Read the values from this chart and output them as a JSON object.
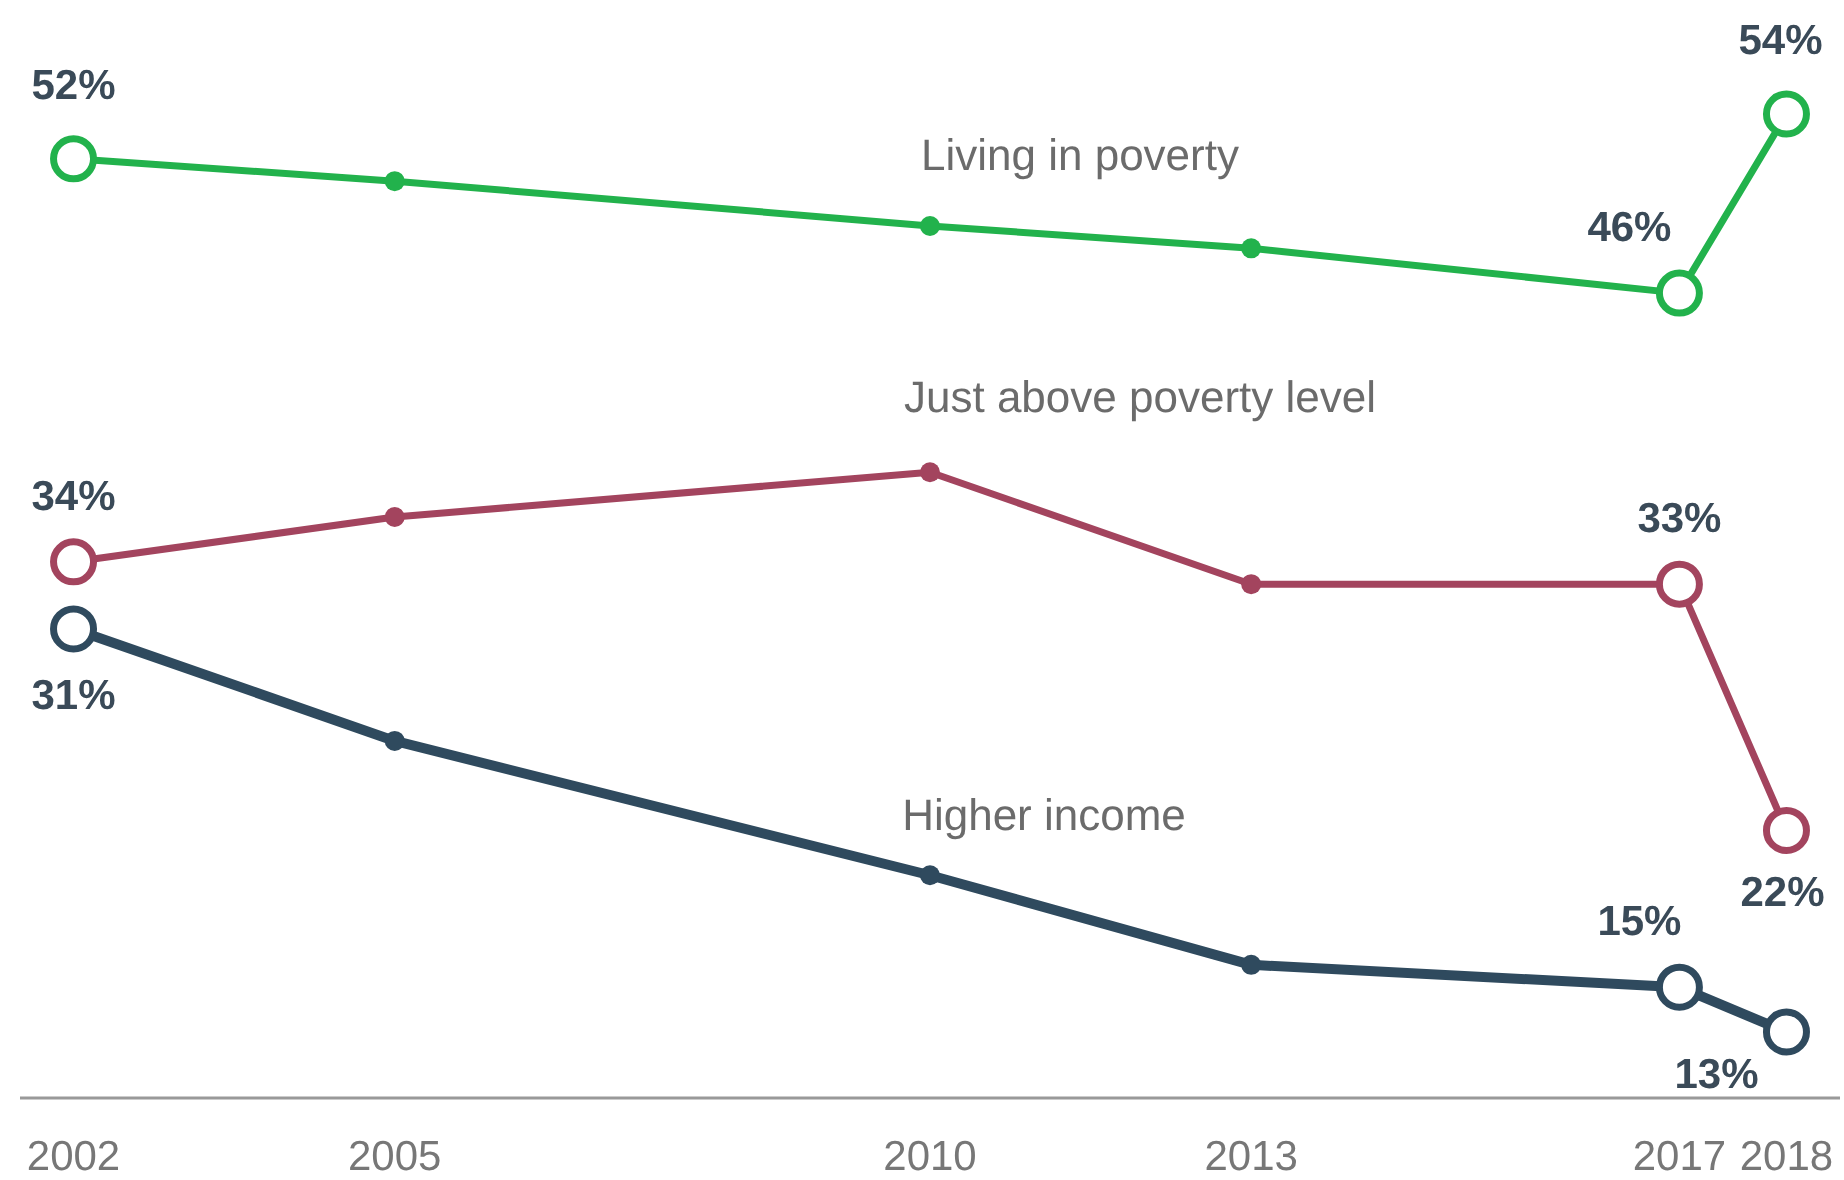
{
  "chart_data": {
    "type": "line",
    "x": [
      2002,
      2005,
      2010,
      2013,
      2017,
      2018
    ],
    "xlim": [
      2001.5,
      2018.5
    ],
    "xticks": [
      2002,
      2005,
      2010,
      2013,
      2017,
      2018
    ],
    "tick_labels": "x",
    "marker": "circle",
    "line_style": "solid",
    "series": [
      {
        "name": "Living in poverty",
        "color": "#22b24c",
        "values": [
          52,
          51,
          49,
          48,
          46,
          54
        ],
        "value_labels": [
          "52%",
          null,
          null,
          null,
          "46%",
          "54%"
        ]
      },
      {
        "name": "Just above poverty level",
        "color": "#a3445e",
        "values": [
          34,
          36,
          38,
          33,
          33,
          22
        ],
        "value_labels": [
          "34%",
          null,
          null,
          null,
          "33%",
          "22%"
        ]
      },
      {
        "name": "Higher income",
        "color": "#2f4a5e",
        "values": [
          31,
          26,
          20,
          16,
          15,
          13
        ],
        "value_labels": [
          "31%",
          null,
          null,
          null,
          "15%",
          "13%"
        ]
      }
    ]
  }
}
